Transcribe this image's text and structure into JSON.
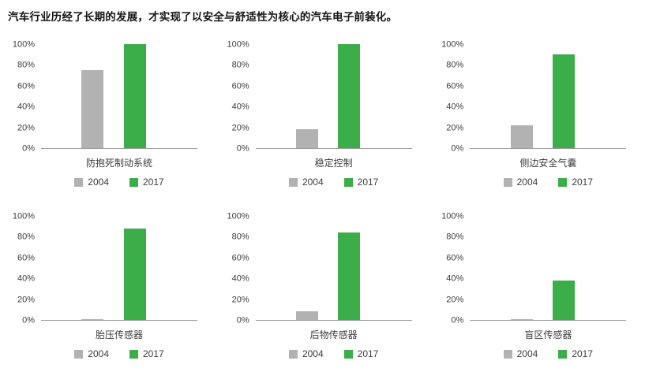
{
  "title": "汽车行业历经了长期的发展，才实现了以安全与舒适性为核心的汽车电子前装化。",
  "colors": {
    "gray": "#b2b2b2",
    "green": "#3bad49",
    "axis": "#9c9c9c",
    "text": "#3d3d3d"
  },
  "y_ticks": [
    {
      "value": 0,
      "label": "0%"
    },
    {
      "value": 20,
      "label": "20%"
    },
    {
      "value": 40,
      "label": "40%"
    },
    {
      "value": 60,
      "label": "60%"
    },
    {
      "value": 80,
      "label": "80%"
    },
    {
      "value": 100,
      "label": "100%"
    }
  ],
  "chart_data": [
    {
      "type": "bar",
      "title": "防抱死制动系统",
      "ylim": [
        0,
        100
      ],
      "grid": false,
      "legend_position": "bottom",
      "categories": [
        "2004",
        "2017"
      ],
      "series": [
        {
          "name": "2004",
          "value": 75
        },
        {
          "name": "2017",
          "value": 100
        }
      ]
    },
    {
      "type": "bar",
      "title": "稳定控制",
      "ylim": [
        0,
        100
      ],
      "grid": false,
      "legend_position": "bottom",
      "categories": [
        "2004",
        "2017"
      ],
      "series": [
        {
          "name": "2004",
          "value": 18
        },
        {
          "name": "2017",
          "value": 100
        }
      ]
    },
    {
      "type": "bar",
      "title": "侧边安全气囊",
      "ylim": [
        0,
        100
      ],
      "grid": false,
      "legend_position": "bottom",
      "categories": [
        "2004",
        "2017"
      ],
      "series": [
        {
          "name": "2004",
          "value": 22
        },
        {
          "name": "2017",
          "value": 90
        }
      ]
    },
    {
      "type": "bar",
      "title": "胎压传感器",
      "ylim": [
        0,
        100
      ],
      "grid": false,
      "legend_position": "bottom",
      "categories": [
        "2004",
        "2017"
      ],
      "series": [
        {
          "name": "2004",
          "value": 1
        },
        {
          "name": "2017",
          "value": 88
        }
      ]
    },
    {
      "type": "bar",
      "title": "后物传感器",
      "ylim": [
        0,
        100
      ],
      "grid": false,
      "legend_position": "bottom",
      "categories": [
        "2004",
        "2017"
      ],
      "series": [
        {
          "name": "2004",
          "value": 8
        },
        {
          "name": "2017",
          "value": 84
        }
      ]
    },
    {
      "type": "bar",
      "title": "盲区传感器",
      "ylim": [
        0,
        100
      ],
      "grid": false,
      "legend_position": "bottom",
      "categories": [
        "2004",
        "2017"
      ],
      "series": [
        {
          "name": "2004",
          "value": 1
        },
        {
          "name": "2017",
          "value": 38
        }
      ]
    }
  ]
}
